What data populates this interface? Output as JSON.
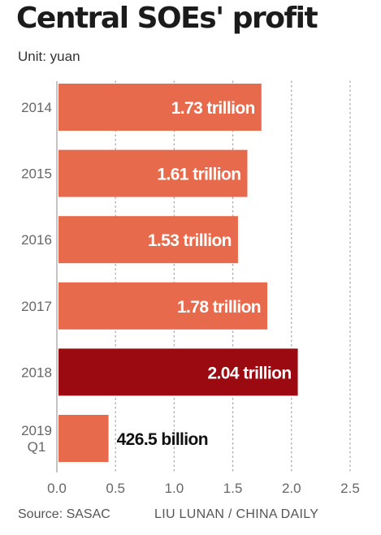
{
  "title": "Central SOEs' profit",
  "subtitle": "Unit: yuan",
  "footer": {
    "source": "Source: SASAC",
    "credit": "LIU LUNAN / CHINA DAILY"
  },
  "colors": {
    "bar": "#e76a4d",
    "highlight": "#9b0a10",
    "grid": "#aaaaaa",
    "axis_text": "#666666"
  },
  "chart_data": {
    "type": "bar",
    "orientation": "horizontal",
    "title": "Central SOEs' profit",
    "unit": "Unit: yuan",
    "categories": [
      "2014",
      "2015",
      "2016",
      "2017",
      "2018",
      "2019 Q1"
    ],
    "values": [
      1.73,
      1.61,
      1.53,
      1.78,
      2.04,
      0.4265
    ],
    "value_labels": [
      "1.73 trillion",
      "1.61 trillion",
      "1.53 trillion",
      "1.78 trillion",
      "2.04 trillion",
      "426.5 billion"
    ],
    "highlight_index": 4,
    "xlim": [
      0,
      2.5
    ],
    "xticks": [
      "0.0",
      "0.5",
      "1.0",
      "1.5",
      "2.0",
      "2.5"
    ],
    "grid": "vertical dotted"
  }
}
